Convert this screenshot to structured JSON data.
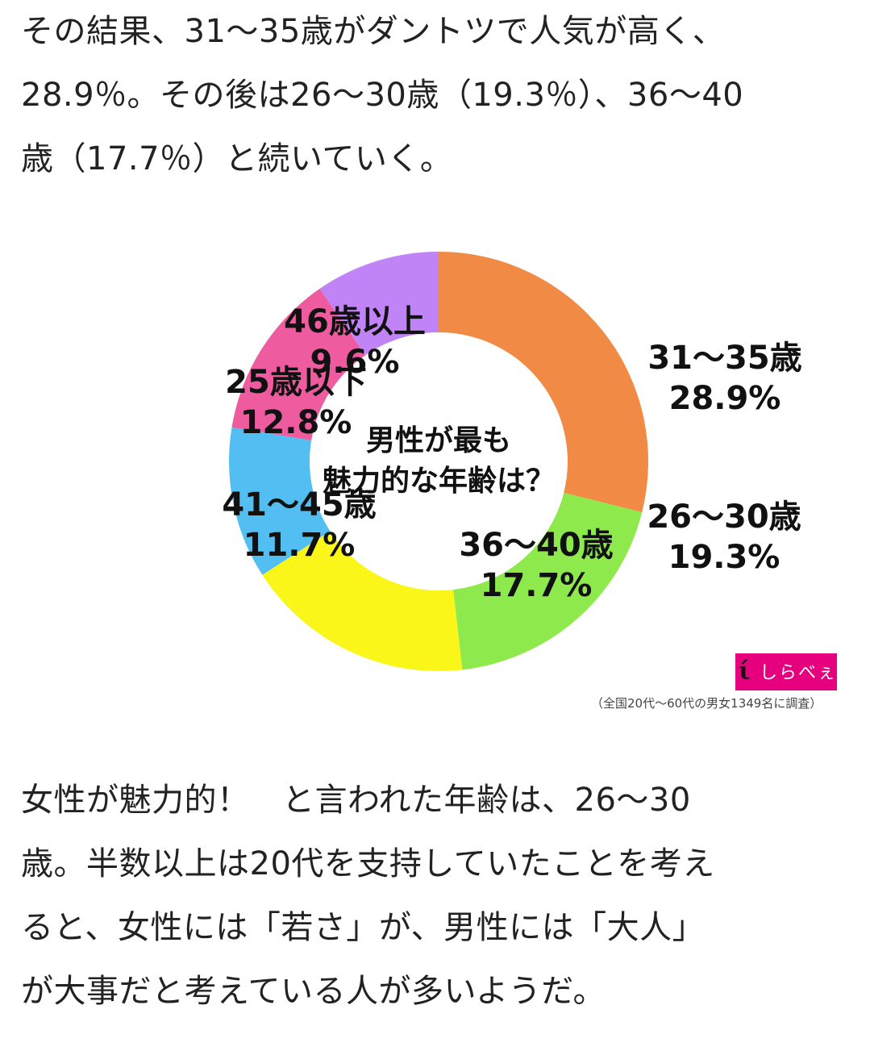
{
  "intro_paragraph": {
    "lines": [
      "その結果、31〜35歳がダントツで人気が高く、",
      "28.9％。その後は26〜30歳（19.3％）、36〜40",
      "歳（17.7％）と続いていく。"
    ]
  },
  "chart_data": {
    "type": "pie",
    "title": "男性が最も魅力的な年齢は？",
    "title_lines": [
      "男性が最も",
      "魅力的な年齢は？"
    ],
    "unit": "%",
    "slices": [
      {
        "label": "31〜35歳",
        "value": 28.9,
        "display": "28.9%",
        "color": "#f08a45"
      },
      {
        "label": "26〜30歳",
        "value": 19.3,
        "display": "19.3%",
        "color": "#8eea4c"
      },
      {
        "label": "36〜40歳",
        "value": 17.7,
        "display": "17.7%",
        "color": "#fbf61a"
      },
      {
        "label": "41〜45歳",
        "value": 11.7,
        "display": "11.7%",
        "color": "#53bef1"
      },
      {
        "label": "25歳以下",
        "value": 12.8,
        "display": "12.8%",
        "color": "#ee5c9f"
      },
      {
        "label": "46歳以上",
        "value": 9.6,
        "display": "9.6%",
        "color": "#c184f7"
      }
    ]
  },
  "source": {
    "logo_text": "しらべぇ",
    "note": "（全国20代〜60代の男女1349名に調査）"
  },
  "closing_paragraph": {
    "lines": [
      "女性が魅力的！　と言われた年齢は、26〜30",
      "歳。半数以上は20代を支持していたことを考え",
      "ると、女性には「若さ」が、男性には「大人」",
      "が大事だと考えている人が多いようだ。"
    ]
  }
}
